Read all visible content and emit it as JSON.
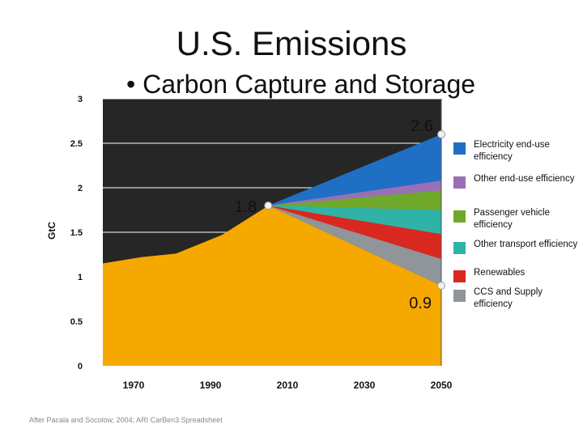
{
  "slide": {
    "title": "U.S. Emissions",
    "bullet_symbol": "•",
    "bullet_text": "Carbon Capture and Storage",
    "source_note": "After Pacala and Socolow, 2004; ARI CarBen3 Spreadsheet"
  },
  "chart_data": {
    "type": "area",
    "title": "",
    "ylabel": "GtC",
    "xlabel": "",
    "ylim": [
      0,
      3
    ],
    "xlim": [
      1962,
      2050
    ],
    "x_ticks": [
      1970,
      1990,
      2010,
      2030,
      2050
    ],
    "y_ticks": [
      0,
      0.5,
      1,
      1.5,
      2,
      2.5,
      3
    ],
    "y_tick_labels": [
      "0",
      "0.5",
      "1",
      "1.5",
      "2",
      "2.5",
      "3"
    ],
    "grid": "horizontal",
    "legend": "right",
    "background_color": "#262626",
    "base_series": {
      "color": "#f5a800",
      "points": [
        [
          1962,
          1.15
        ],
        [
          1972,
          1.22
        ],
        [
          1981,
          1.26
        ],
        [
          1993,
          1.47
        ],
        [
          2004,
          1.77
        ],
        [
          2005,
          1.8
        ],
        [
          2050,
          0.9
        ]
      ]
    },
    "wedges_start_x": 2005,
    "wedges_start_y": 1.8,
    "series": [
      {
        "name": "Electricity end-use efficiency",
        "color": "#1f6fc5",
        "top_2050": 2.6
      },
      {
        "name": "Other end-use efficiency",
        "color": "#9a70b5",
        "top_2050": 2.08
      },
      {
        "name": "Passenger vehicle efficiency",
        "color": "#6fa82a",
        "top_2050": 1.97
      },
      {
        "name": "Other transport efficiency",
        "color": "#2fb3a7",
        "top_2050": 1.75
      },
      {
        "name": "Renewables",
        "color": "#d8281f",
        "top_2050": 1.48
      },
      {
        "name": "CCS and Supply efficiency",
        "color": "#8f9598",
        "top_2050": 1.2
      }
    ],
    "annotations": [
      {
        "text": "2.6",
        "x": 2050,
        "y": 2.6
      },
      {
        "text": "1.8",
        "x": 2005,
        "y": 1.8
      },
      {
        "text": "0.9",
        "x": 2050,
        "y": 0.9
      }
    ]
  }
}
